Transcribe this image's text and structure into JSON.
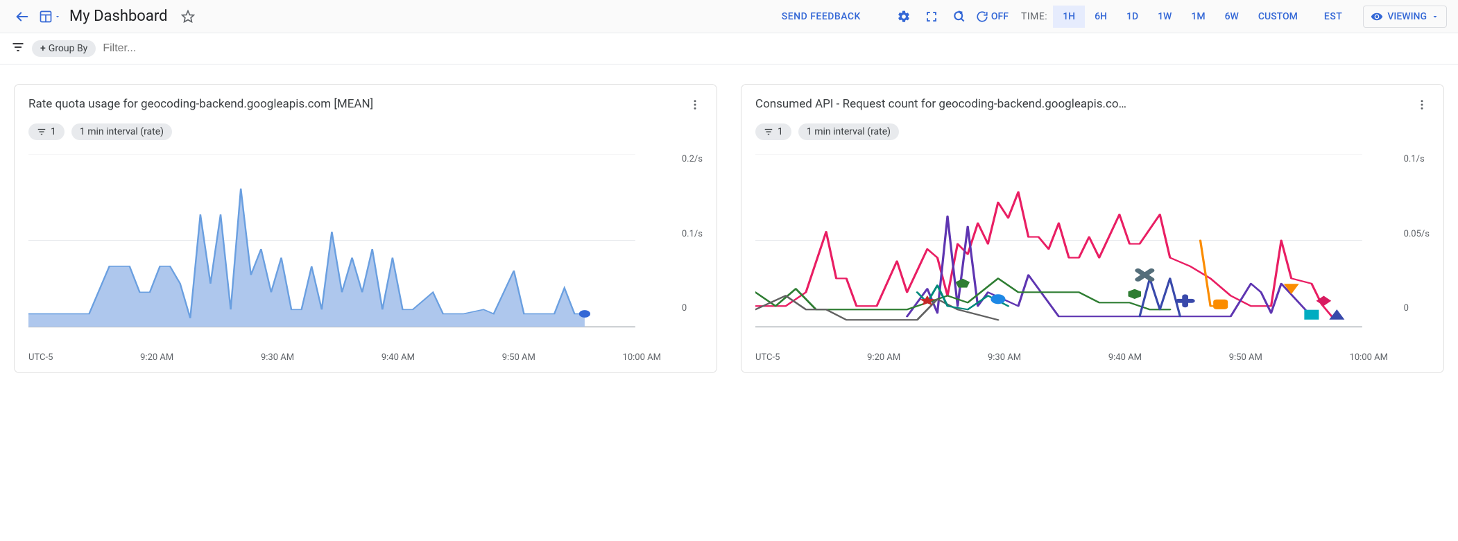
{
  "header": {
    "title": "My Dashboard",
    "feedback_label": "SEND FEEDBACK",
    "refresh_state": "OFF",
    "time_label": "TIME:",
    "time_range_items": [
      "1H",
      "6H",
      "1D",
      "1W",
      "1M",
      "6W",
      "CUSTOM"
    ],
    "time_range_active_index": 0,
    "timezone_label": "EST",
    "viewing_label": "VIEWING"
  },
  "filterbar": {
    "groupby_label": "Group By",
    "filter_placeholder": "Filter..."
  },
  "cards": [
    {
      "title": "Rate quota usage for geocoding-backend.googleapis.com [MEAN]",
      "chip_filter_count": "1",
      "chip_interval": "1 min interval (rate)",
      "chart": {
        "type": "area",
        "xlim": [
          0,
          60
        ],
        "ylim": [
          0,
          0.2
        ],
        "y_ticks": [
          "0.2/s",
          "0.1/s",
          "0"
        ],
        "x_ticks": [
          "UTC-5",
          "9:20 AM",
          "9:30 AM",
          "9:40 AM",
          "9:50 AM",
          "10:00 AM"
        ],
        "fill_color": "#aec7ed",
        "stroke_color": "#6a9fe0",
        "end_marker_color": "#3367d6",
        "grid_color": "#e8eaed",
        "series": [
          [
            0,
            0.015
          ],
          [
            2,
            0.015
          ],
          [
            4,
            0.015
          ],
          [
            6,
            0.015
          ],
          [
            8,
            0.07
          ],
          [
            9,
            0.07
          ],
          [
            10,
            0.07
          ],
          [
            11,
            0.04
          ],
          [
            12,
            0.04
          ],
          [
            13,
            0.07
          ],
          [
            14,
            0.07
          ],
          [
            15,
            0.05
          ],
          [
            16,
            0.01
          ],
          [
            17,
            0.13
          ],
          [
            18,
            0.05
          ],
          [
            19,
            0.13
          ],
          [
            20,
            0.02
          ],
          [
            21,
            0.16
          ],
          [
            22,
            0.06
          ],
          [
            23,
            0.09
          ],
          [
            24,
            0.04
          ],
          [
            25,
            0.08
          ],
          [
            26,
            0.02
          ],
          [
            27,
            0.02
          ],
          [
            28,
            0.07
          ],
          [
            29,
            0.02
          ],
          [
            30,
            0.11
          ],
          [
            31,
            0.04
          ],
          [
            32,
            0.08
          ],
          [
            33,
            0.04
          ],
          [
            34,
            0.09
          ],
          [
            35,
            0.02
          ],
          [
            36,
            0.08
          ],
          [
            37,
            0.02
          ],
          [
            38,
            0.02
          ],
          [
            40,
            0.04
          ],
          [
            41,
            0.015
          ],
          [
            43,
            0.015
          ],
          [
            45,
            0.02
          ],
          [
            46,
            0.015
          ],
          [
            48,
            0.065
          ],
          [
            49,
            0.015
          ],
          [
            50,
            0.015
          ],
          [
            52,
            0.015
          ],
          [
            53,
            0.045
          ],
          [
            54,
            0.015
          ],
          [
            55,
            0.015
          ]
        ]
      }
    },
    {
      "title": "Consumed API - Request count for geocoding-backend.googleapis.co…",
      "chip_filter_count": "1",
      "chip_interval": "1 min interval (rate)",
      "chart": {
        "type": "line-multi",
        "xlim": [
          0,
          60
        ],
        "ylim": [
          0,
          0.1
        ],
        "y_ticks": [
          "0.1/s",
          "0.05/s",
          "0"
        ],
        "x_ticks": [
          "UTC-5",
          "9:20 AM",
          "9:30 AM",
          "9:40 AM",
          "9:50 AM",
          "10:00 AM"
        ],
        "grid_color": "#e8eaed",
        "series": [
          {
            "color": "#e91e63",
            "width": 2,
            "data": [
              [
                0,
                0.012
              ],
              [
                3,
                0.012
              ],
              [
                5,
                0.02
              ],
              [
                7,
                0.055
              ],
              [
                8,
                0.028
              ],
              [
                9,
                0.028
              ],
              [
                10,
                0.012
              ],
              [
                12,
                0.012
              ],
              [
                14,
                0.038
              ],
              [
                15,
                0.02
              ],
              [
                17,
                0.045
              ],
              [
                18,
                0.04
              ],
              [
                19,
                0.018
              ],
              [
                20,
                0.048
              ],
              [
                21,
                0.042
              ],
              [
                22,
                0.06
              ],
              [
                23,
                0.048
              ],
              [
                24,
                0.072
              ],
              [
                25,
                0.063
              ],
              [
                26,
                0.078
              ],
              [
                27,
                0.052
              ],
              [
                28,
                0.052
              ],
              [
                29,
                0.045
              ],
              [
                30,
                0.06
              ],
              [
                31,
                0.04
              ],
              [
                32,
                0.04
              ],
              [
                33,
                0.052
              ],
              [
                34,
                0.04
              ],
              [
                36,
                0.065
              ],
              [
                37,
                0.048
              ],
              [
                38,
                0.048
              ],
              [
                40,
                0.065
              ],
              [
                41,
                0.04
              ],
              [
                43,
                0.035
              ],
              [
                45,
                0.028
              ],
              [
                47,
                0.018
              ],
              [
                49,
                0.012
              ],
              [
                51,
                0.012
              ],
              [
                52,
                0.05
              ],
              [
                53,
                0.028
              ],
              [
                55,
                0.025
              ],
              [
                56,
                0.013
              ],
              [
                57,
                0.006
              ]
            ]
          },
          {
            "color": "#5e35b1",
            "width": 2,
            "data": [
              [
                15,
                0.006
              ],
              [
                17,
                0.022
              ],
              [
                18,
                0.008
              ],
              [
                19,
                0.064
              ],
              [
                20,
                0.012
              ],
              [
                21,
                0.058
              ],
              [
                22,
                0.012
              ],
              [
                23,
                0.02
              ],
              [
                26,
                0.012
              ],
              [
                27,
                0.03
              ],
              [
                30,
                0.006
              ],
              [
                33,
                0.006
              ],
              [
                47,
                0.006
              ],
              [
                49,
                0.025
              ],
              [
                50,
                0.02
              ],
              [
                51,
                0.008
              ],
              [
                52,
                0.025
              ],
              [
                55,
                0.006
              ]
            ]
          },
          {
            "color": "#2e7d32",
            "width": 2,
            "data": [
              [
                0,
                0.02
              ],
              [
                2,
                0.012
              ],
              [
                4,
                0.022
              ],
              [
                6,
                0.01
              ],
              [
                8,
                0.01
              ],
              [
                12,
                0.01
              ],
              [
                15,
                0.01
              ],
              [
                17,
                0.014
              ],
              [
                19,
                0.018
              ],
              [
                21,
                0.014
              ],
              [
                24,
                0.028
              ],
              [
                26,
                0.02
              ],
              [
                28,
                0.02
              ],
              [
                30,
                0.02
              ],
              [
                32,
                0.02
              ],
              [
                34,
                0.014
              ],
              [
                37,
                0.014
              ],
              [
                39,
                0.01
              ],
              [
                41,
                0.01
              ]
            ]
          },
          {
            "color": "#fb8c00",
            "width": 2,
            "data": [
              [
                44,
                0.05
              ],
              [
                45,
                0.012
              ],
              [
                46,
                0.012
              ]
            ]
          },
          {
            "color": "#3949ab",
            "width": 2,
            "data": [
              [
                38,
                0.006
              ],
              [
                39,
                0.028
              ],
              [
                40,
                0.01
              ],
              [
                41,
                0.028
              ],
              [
                42,
                0.006
              ]
            ]
          },
          {
            "color": "#616161",
            "width": 2,
            "data": [
              [
                0,
                0.01
              ],
              [
                3,
                0.018
              ],
              [
                5,
                0.01
              ],
              [
                7,
                0.01
              ],
              [
                9,
                0.004
              ],
              [
                16,
                0.004
              ],
              [
                18,
                0.016
              ],
              [
                20,
                0.01
              ],
              [
                24,
                0.004
              ]
            ]
          },
          {
            "color": "#00897b",
            "width": 2,
            "data": [
              [
                16,
                0.02
              ],
              [
                17,
                0.014
              ],
              [
                18,
                0.024
              ],
              [
                19,
                0.012
              ],
              [
                21,
                0.01
              ],
              [
                23,
                0.018
              ],
              [
                25,
                0.012
              ]
            ]
          }
        ],
        "markers": [
          {
            "shape": "star",
            "x": 17.0,
            "y": 0.015,
            "color": "#c62828"
          },
          {
            "shape": "pentagon",
            "x": 20.5,
            "y": 0.025,
            "color": "#2e7d32"
          },
          {
            "shape": "circle",
            "x": 24.0,
            "y": 0.016,
            "color": "#1e88e5"
          },
          {
            "shape": "hexagon",
            "x": 37.5,
            "y": 0.019,
            "color": "#2e7d32"
          },
          {
            "shape": "x",
            "x": 38.5,
            "y": 0.03,
            "color": "#546e7a"
          },
          {
            "shape": "plus",
            "x": 42.5,
            "y": 0.015,
            "color": "#3949ab"
          },
          {
            "shape": "square-round",
            "x": 46.0,
            "y": 0.013,
            "color": "#fb8c00"
          },
          {
            "shape": "triangle-down",
            "x": 53.0,
            "y": 0.022,
            "color": "#fb8c00"
          },
          {
            "shape": "square",
            "x": 55.0,
            "y": 0.007,
            "color": "#00acc1"
          },
          {
            "shape": "diamond",
            "x": 56.2,
            "y": 0.015,
            "color": "#d81b60"
          },
          {
            "shape": "triangle-up",
            "x": 57.5,
            "y": 0.007,
            "color": "#3949ab"
          }
        ]
      }
    }
  ]
}
